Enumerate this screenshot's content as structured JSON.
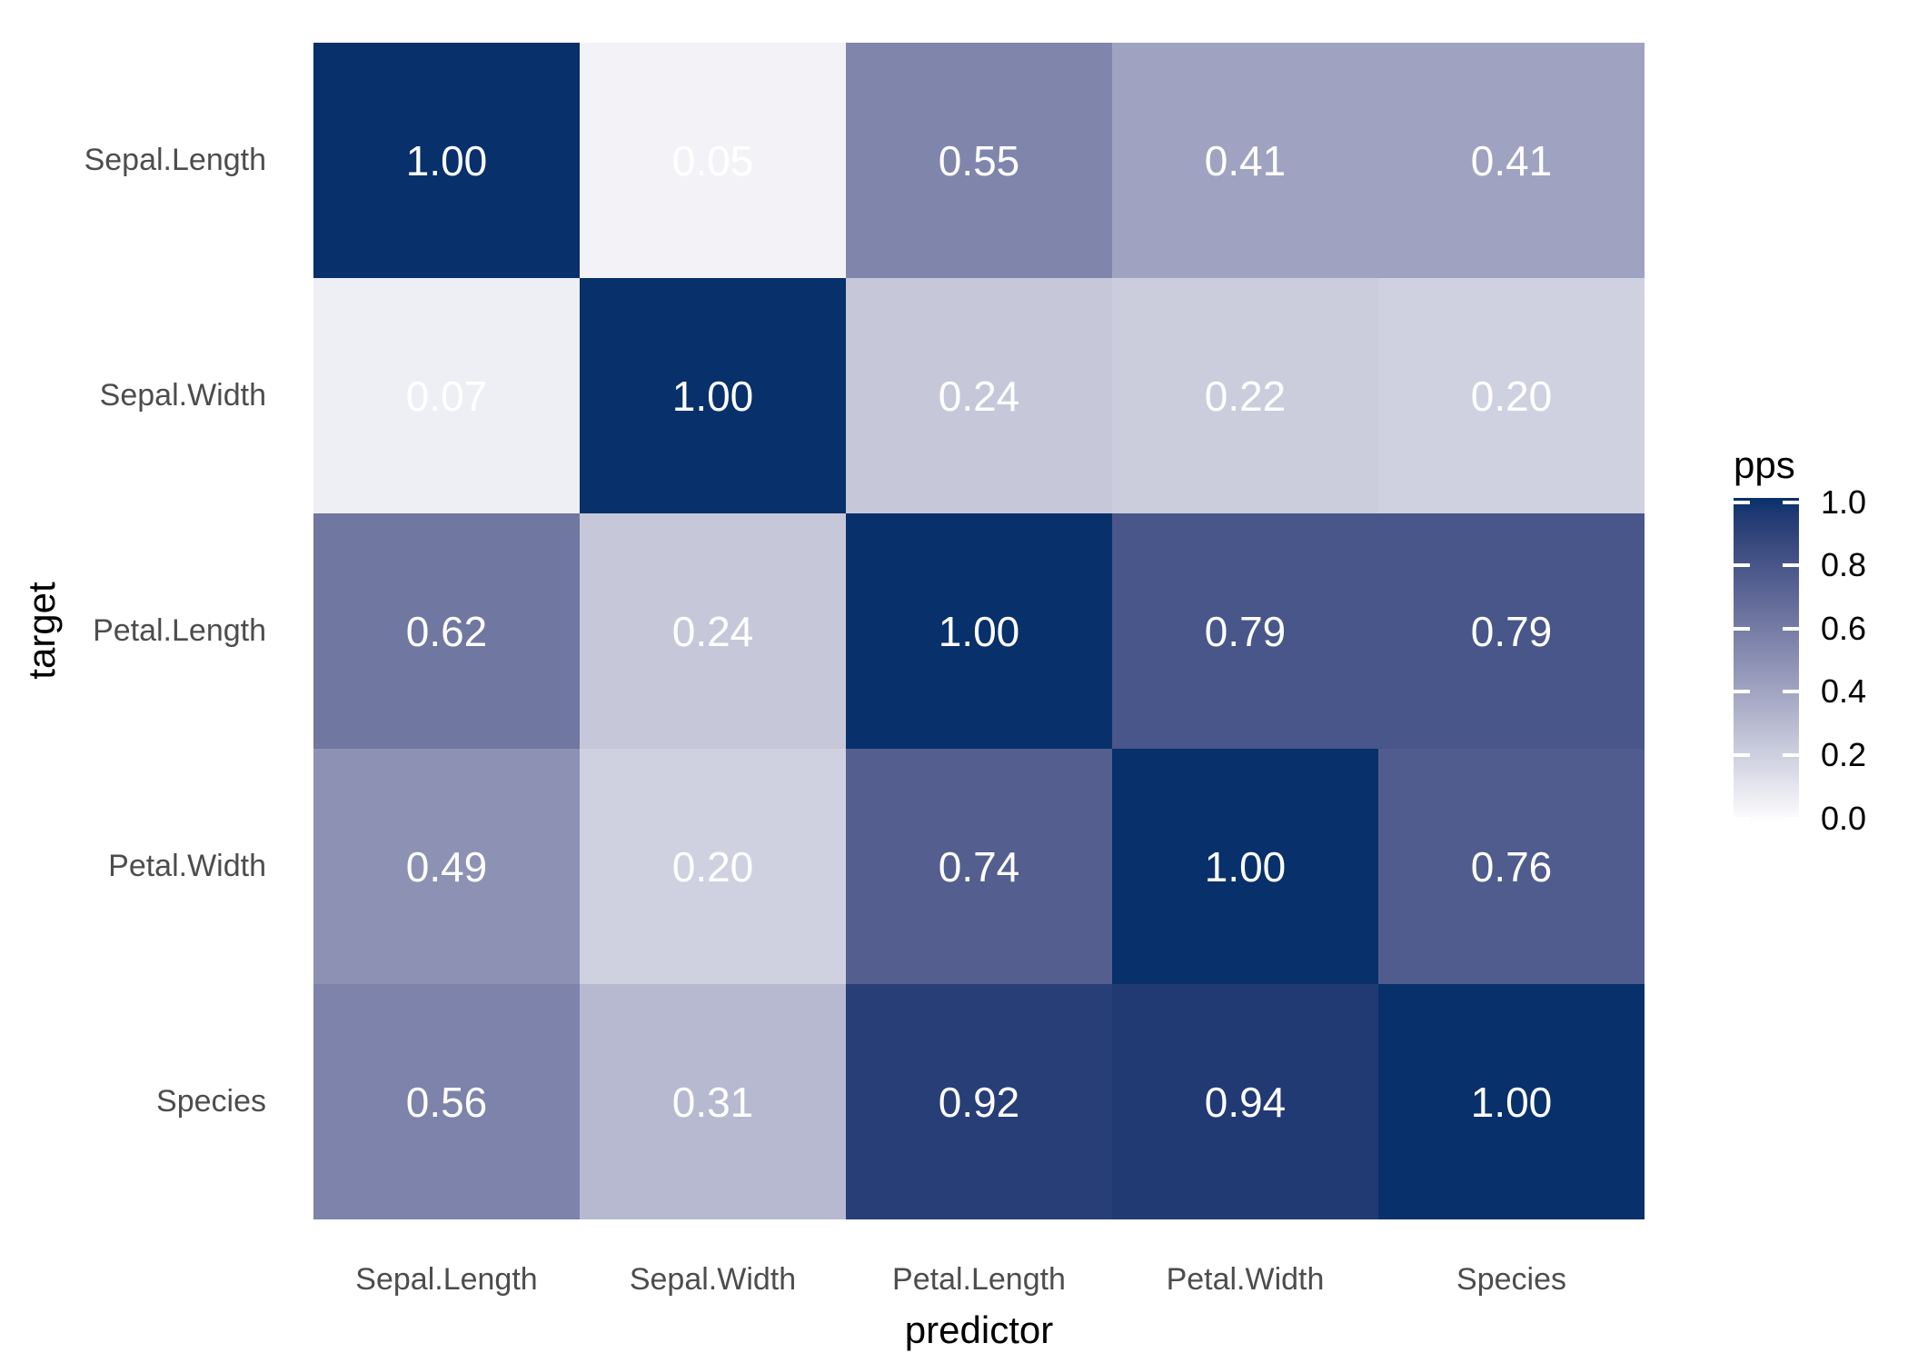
{
  "chart_data": {
    "type": "heatmap",
    "title": "",
    "xlabel": "predictor",
    "ylabel": "target",
    "x_categories": [
      "Sepal.Length",
      "Sepal.Width",
      "Petal.Length",
      "Petal.Width",
      "Species"
    ],
    "y_categories": [
      "Sepal.Length",
      "Sepal.Width",
      "Petal.Length",
      "Petal.Width",
      "Species"
    ],
    "values": [
      [
        1.0,
        0.05,
        0.55,
        0.41,
        0.41
      ],
      [
        0.07,
        1.0,
        0.24,
        0.22,
        0.2
      ],
      [
        0.62,
        0.24,
        1.0,
        0.79,
        0.79
      ],
      [
        0.49,
        0.2,
        0.74,
        1.0,
        0.76
      ],
      [
        0.56,
        0.31,
        0.92,
        0.94,
        1.0
      ]
    ],
    "value_decimals": 2,
    "vmin": 0.0,
    "vmax": 1.0,
    "grid": false,
    "legend": {
      "title": "pps",
      "position": "right",
      "tick_labels": [
        "1.0",
        "0.8",
        "0.6",
        "0.4",
        "0.2",
        "0.0"
      ],
      "tick_values": [
        1.0,
        0.8,
        0.6,
        0.4,
        0.2,
        0.0
      ]
    },
    "colors": {
      "low": "#FFFFFF",
      "high": "#08306B",
      "cell_text": "#FFFFFF",
      "axis_text": "#4D4D4D",
      "title_text": "#000000",
      "background": "#FFFFFF"
    }
  }
}
